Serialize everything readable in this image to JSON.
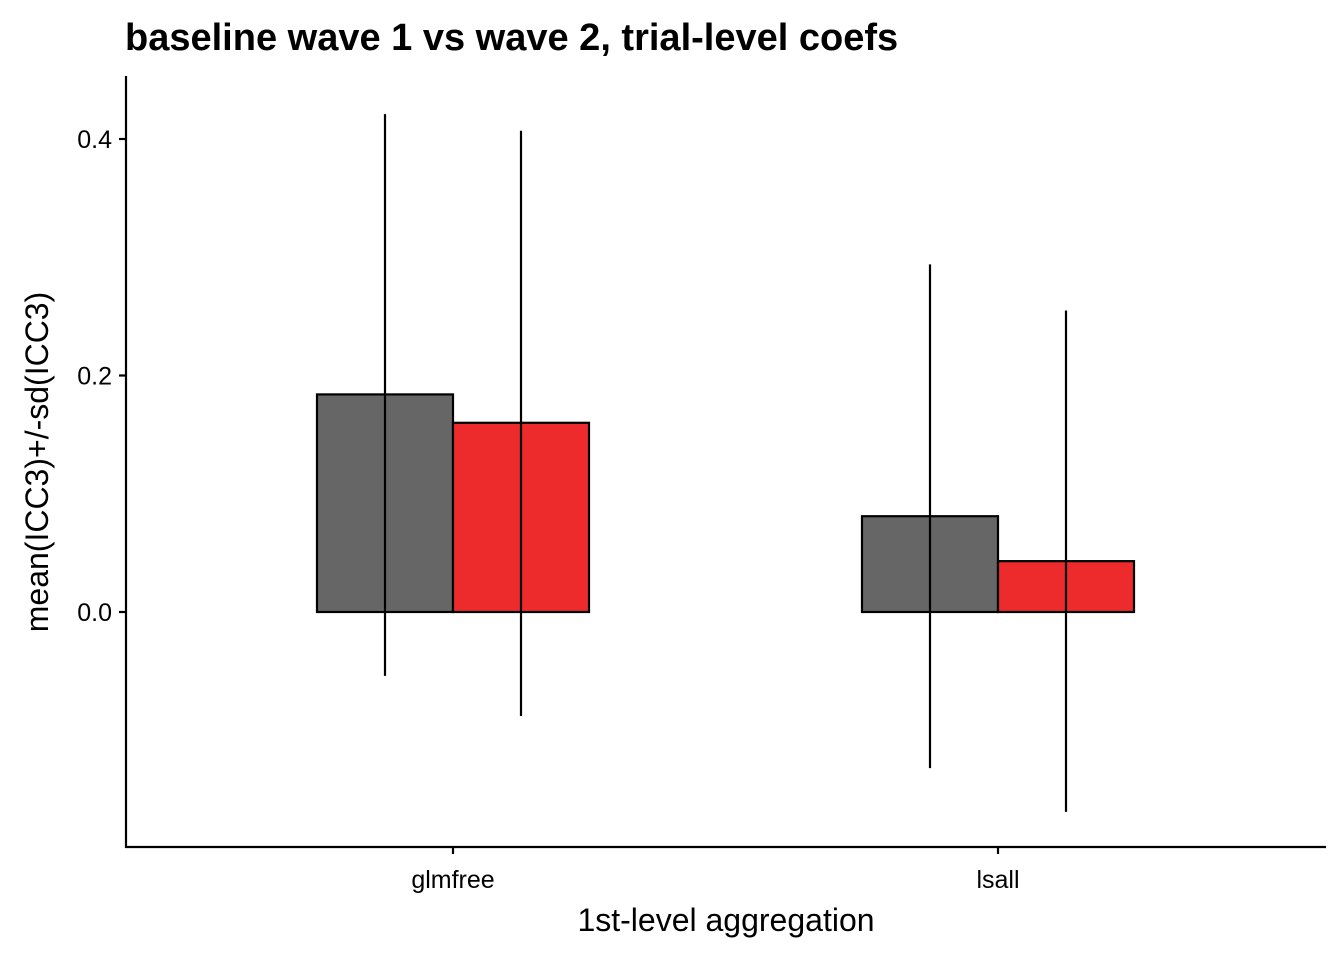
{
  "chart_data": {
    "type": "bar",
    "title": "baseline wave 1 vs wave 2, trial-level coefs",
    "xlabel": "1st-level aggregation",
    "ylabel": "mean(ICC3)+/-sd(ICC3)",
    "categories": [
      "glmfree",
      "lsall"
    ],
    "series": [
      {
        "color": "#666666",
        "values": [
          0.184,
          0.081
        ],
        "error_low": [
          -0.054,
          -0.132
        ],
        "error_high": [
          0.421,
          0.294
        ]
      },
      {
        "color": "#ee2b2c",
        "values": [
          0.16,
          0.043
        ],
        "error_low": [
          -0.088,
          -0.169
        ],
        "error_high": [
          0.407,
          0.255
        ]
      }
    ],
    "yticks": [
      0.0,
      0.2,
      0.4
    ],
    "ytick_labels": [
      "0.0",
      "0.2",
      "0.4"
    ],
    "ylim": [
      -0.199,
      0.45
    ],
    "grid": false,
    "legend": "none"
  }
}
